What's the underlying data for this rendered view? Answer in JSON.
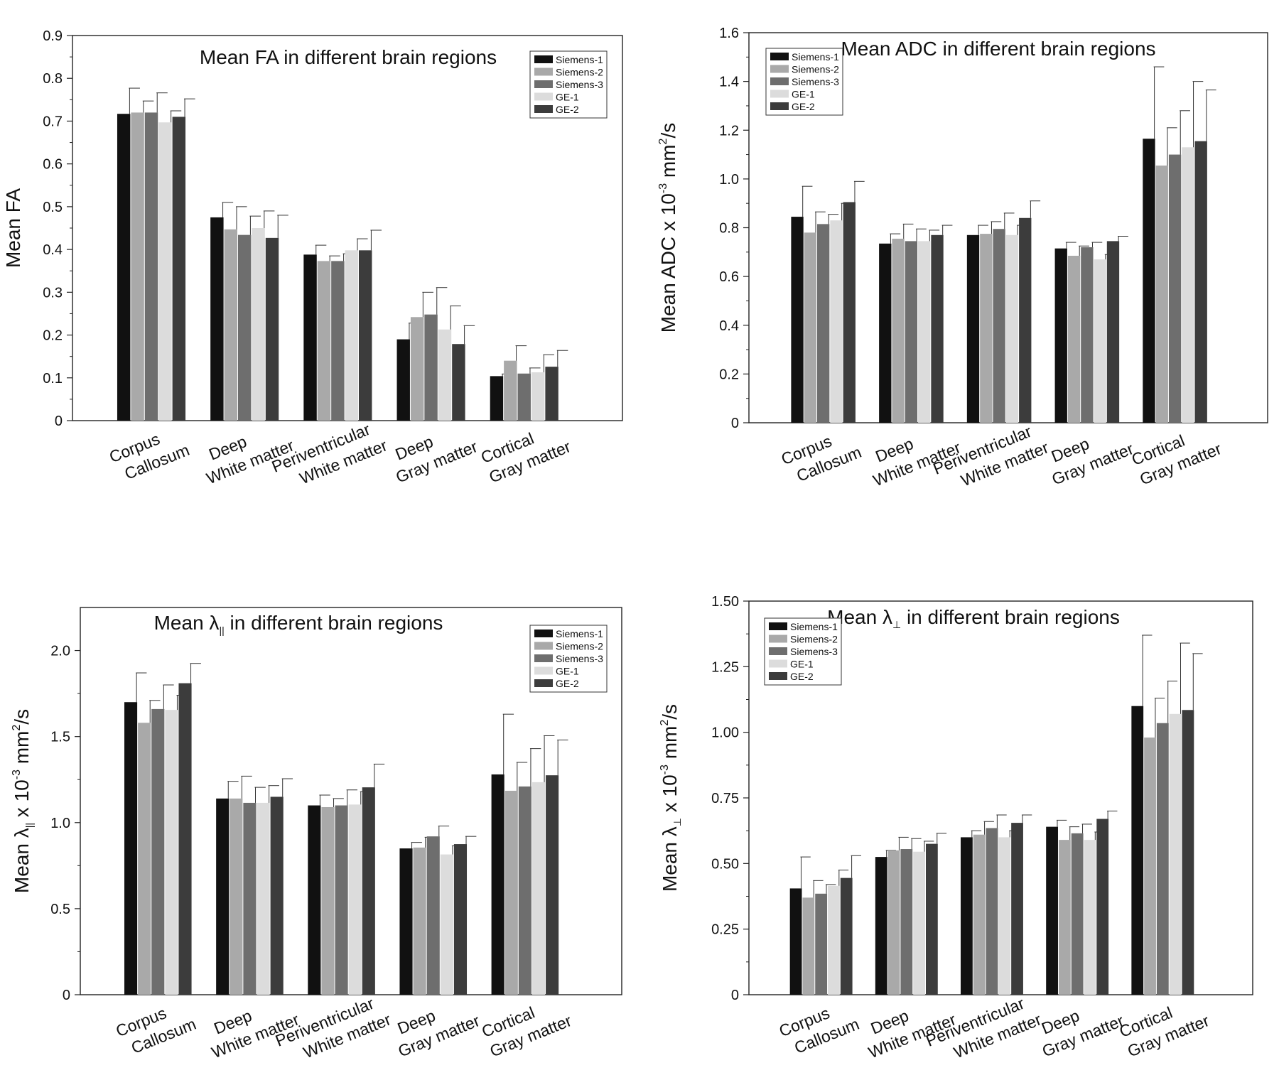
{
  "legend_series": [
    "Siemens-1",
    "Siemens-2",
    "Siemens-3",
    "GE-1",
    "GE-2"
  ],
  "series_colors": [
    "#111111",
    "#a9a9a9",
    "#6e6e6e",
    "#dcdcdc",
    "#3c3c3c"
  ],
  "categories": [
    [
      "Corpus",
      "Callosum"
    ],
    [
      "Deep",
      "White matter"
    ],
    [
      "Periventricular",
      "White matter"
    ],
    [
      "Deep",
      "Gray matter"
    ],
    [
      "Cortical",
      "Gray matter"
    ]
  ],
  "chart_data": [
    {
      "type": "bar",
      "title": "Mean FA in different brain regions",
      "ylabel": "Mean FA",
      "ylim": [
        0,
        0.9
      ],
      "yticks": [
        "0",
        "0.1",
        "0.2",
        "0.3",
        "0.4",
        "0.5",
        "0.6",
        "0.7",
        "0.8",
        "0.9"
      ],
      "legend_position": "top-right",
      "series": [
        {
          "name": "Siemens-1",
          "values": [
            0.717,
            0.475,
            0.388,
            0.19,
            0.104
          ],
          "errors": [
            0.06,
            0.035,
            0.022,
            0.038,
            0.005
          ]
        },
        {
          "name": "Siemens-2",
          "values": [
            0.72,
            0.447,
            0.373,
            0.242,
            0.14
          ],
          "errors": [
            0.027,
            0.053,
            0.012,
            0.058,
            0.035
          ]
        },
        {
          "name": "Siemens-3",
          "values": [
            0.72,
            0.434,
            0.373,
            0.248,
            0.11
          ],
          "errors": [
            0.046,
            0.044,
            0.017,
            0.063,
            0.013
          ]
        },
        {
          "name": "GE-1",
          "values": [
            0.697,
            0.45,
            0.398,
            0.213,
            0.113
          ],
          "errors": [
            0.027,
            0.04,
            0.027,
            0.055,
            0.041
          ]
        },
        {
          "name": "GE-2",
          "values": [
            0.71,
            0.427,
            0.398,
            0.179,
            0.126
          ],
          "errors": [
            0.042,
            0.053,
            0.047,
            0.043,
            0.038
          ]
        }
      ]
    },
    {
      "type": "bar",
      "title": "Mean ADC in different brain regions",
      "ylabel": "Mean ADC x 10",
      "ylabel_exponent": "-3",
      "ylabel_unit": " mm",
      "ylabel_unit_exponent": "2",
      "ylabel_suffix": "/s",
      "ylim": [
        0,
        1.6
      ],
      "yticks": [
        "0",
        "0.2",
        "0.4",
        "0.6",
        "0.8",
        "1.0",
        "1.2",
        "1.4",
        "1.6"
      ],
      "legend_position": "top-left",
      "series": [
        {
          "name": "Siemens-1",
          "values": [
            0.845,
            0.735,
            0.77,
            0.715,
            1.165
          ],
          "errors": [
            0.125,
            0.04,
            0.04,
            0.025,
            0.295
          ]
        },
        {
          "name": "Siemens-2",
          "values": [
            0.78,
            0.755,
            0.775,
            0.685,
            1.055
          ],
          "errors": [
            0.085,
            0.06,
            0.05,
            0.04,
            0.155
          ]
        },
        {
          "name": "Siemens-3",
          "values": [
            0.815,
            0.745,
            0.795,
            0.72,
            1.1
          ],
          "errors": [
            0.04,
            0.05,
            0.065,
            0.02,
            0.18
          ]
        },
        {
          "name": "GE-1",
          "values": [
            0.83,
            0.745,
            0.77,
            0.67,
            1.13
          ],
          "errors": [
            0.07,
            0.045,
            0.04,
            0.02,
            0.27
          ]
        },
        {
          "name": "GE-2",
          "values": [
            0.905,
            0.77,
            0.84,
            0.745,
            1.155
          ],
          "errors": [
            0.085,
            0.04,
            0.07,
            0.02,
            0.21
          ]
        }
      ]
    },
    {
      "type": "bar",
      "title": "Mean λ",
      "title_sub": "||",
      "title_suffix": " in different brain regions",
      "ylabel": "Mean λ",
      "ylabel_sub": "||",
      "ylabel_mid": " x 10",
      "ylabel_exponent": "-3",
      "ylabel_unit": " mm",
      "ylabel_unit_exponent": "2",
      "ylabel_suffix": "/s",
      "ylim": [
        0,
        2.25
      ],
      "yticks": [
        "0",
        "0.5",
        "1.0",
        "1.5",
        "2.0"
      ],
      "ytick_values": [
        0,
        0.5,
        1.0,
        1.5,
        2.0
      ],
      "legend_position": "top-right",
      "series": [
        {
          "name": "Siemens-1",
          "values": [
            1.7,
            1.14,
            1.1,
            0.85,
            1.28
          ],
          "errors": [
            0.17,
            0.1,
            0.06,
            0.035,
            0.35
          ]
        },
        {
          "name": "Siemens-2",
          "values": [
            1.58,
            1.14,
            1.09,
            0.855,
            1.185
          ],
          "errors": [
            0.13,
            0.13,
            0.05,
            0.06,
            0.165
          ]
        },
        {
          "name": "Siemens-3",
          "values": [
            1.66,
            1.115,
            1.1,
            0.92,
            1.21
          ],
          "errors": [
            0.14,
            0.09,
            0.09,
            0.06,
            0.22
          ]
        },
        {
          "name": "GE-1",
          "values": [
            1.655,
            1.115,
            1.105,
            0.815,
            1.235
          ],
          "errors": [
            0.085,
            0.1,
            0.075,
            0.05,
            0.27
          ]
        },
        {
          "name": "GE-2",
          "values": [
            1.81,
            1.15,
            1.205,
            0.875,
            1.275
          ],
          "errors": [
            0.115,
            0.105,
            0.135,
            0.045,
            0.205
          ]
        }
      ]
    },
    {
      "type": "bar",
      "title": "Mean λ",
      "title_sub": "⊥",
      "title_suffix": " in different brain regions",
      "ylabel": "Mean λ",
      "ylabel_sub": "⊥",
      "ylabel_mid": " x 10",
      "ylabel_exponent": "-3",
      "ylabel_unit": " mm",
      "ylabel_unit_exponent": "2",
      "ylabel_suffix": "/s",
      "ylim": [
        0,
        1.5
      ],
      "yticks": [
        "0",
        "0.25",
        "0.50",
        "0.75",
        "1.00",
        "1.25",
        "1.50"
      ],
      "legend_position": "top-left",
      "series": [
        {
          "name": "Siemens-1",
          "values": [
            0.405,
            0.525,
            0.6,
            0.64,
            1.1
          ],
          "errors": [
            0.12,
            0.025,
            0.025,
            0.025,
            0.27
          ]
        },
        {
          "name": "Siemens-2",
          "values": [
            0.37,
            0.55,
            0.61,
            0.59,
            0.98
          ],
          "errors": [
            0.065,
            0.05,
            0.05,
            0.05,
            0.15
          ]
        },
        {
          "name": "Siemens-3",
          "values": [
            0.385,
            0.555,
            0.635,
            0.615,
            1.035
          ],
          "errors": [
            0.035,
            0.04,
            0.05,
            0.035,
            0.16
          ]
        },
        {
          "name": "GE-1",
          "values": [
            0.415,
            0.545,
            0.6,
            0.59,
            1.07
          ],
          "errors": [
            0.06,
            0.04,
            0.025,
            0.03,
            0.27
          ]
        },
        {
          "name": "GE-2",
          "values": [
            0.445,
            0.575,
            0.655,
            0.67,
            1.085
          ],
          "errors": [
            0.085,
            0.04,
            0.03,
            0.03,
            0.215
          ]
        }
      ]
    }
  ]
}
